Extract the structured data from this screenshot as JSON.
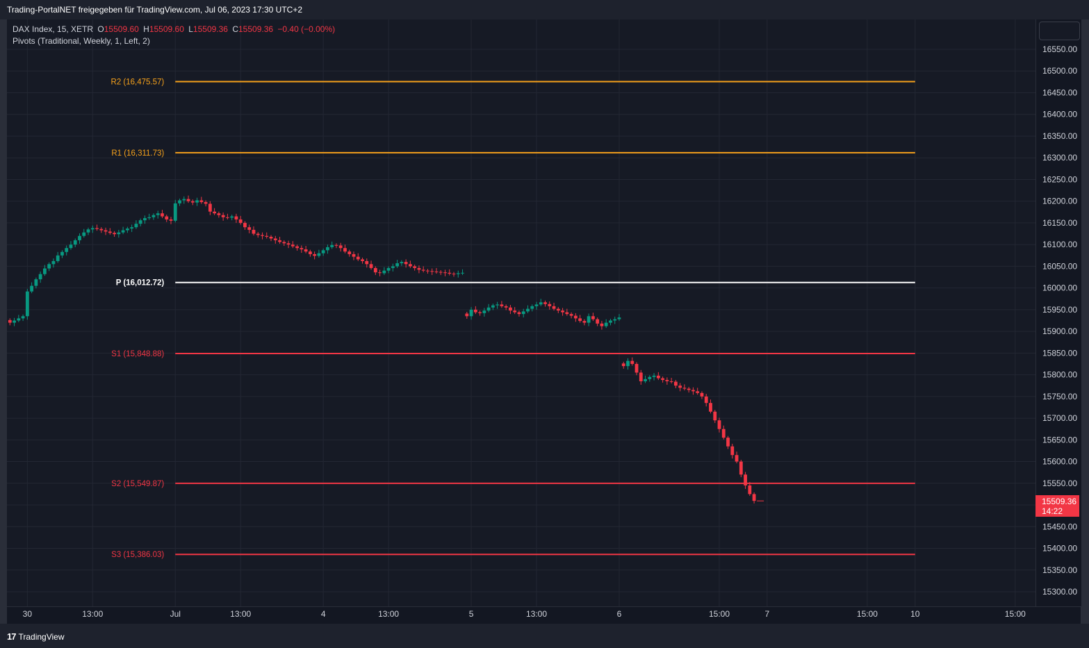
{
  "header": {
    "share_text": "Trading-PortalNET freigegeben für TradingView.com, Jul 06, 2023 17:30 UTC+2"
  },
  "legend": {
    "symbol": "DAX Index, 15, XETR",
    "o_label": "O",
    "o_value": "15509.60",
    "h_label": "H",
    "h_value": "15509.60",
    "l_label": "L",
    "l_value": "15509.36",
    "c_label": "C",
    "c_value": "15509.36",
    "change": "−0.40 (−0.00%)",
    "indicator": "Pivots (Traditional, Weekly, 1, Left, 2)"
  },
  "last_price": {
    "price": "15509.36",
    "countdown": "14:22"
  },
  "footer": {
    "brand": "TradingView",
    "logo_icon": "tradingview-logo-icon"
  },
  "colors": {
    "up": "#089981",
    "down": "#f23645",
    "pivot_p": "#ffffff",
    "resistance": "#f7a21b",
    "support": "#f23645",
    "background": "#161a25"
  },
  "chart_data": {
    "type": "candlestick",
    "symbol": "DAX Index",
    "interval": "15",
    "exchange": "XETR",
    "ylim": [
      15260,
      16600
    ],
    "y_ticks": [
      15300,
      15350,
      15400,
      15450,
      15500,
      15550,
      15600,
      15650,
      15700,
      15750,
      15800,
      15850,
      15900,
      15950,
      16000,
      16050,
      16100,
      16150,
      16200,
      16250,
      16300,
      16350,
      16400,
      16450,
      16500,
      16550
    ],
    "y_tick_labels": [
      "15300.00",
      "15350.00",
      "15400.00",
      "15450.00",
      "15500.00",
      "15550.00",
      "15600.00",
      "15650.00",
      "15700.00",
      "15750.00",
      "15800.00",
      "15850.00",
      "15900.00",
      "15950.00",
      "16000.00",
      "16050.00",
      "16100.00",
      "16150.00",
      "16200.00",
      "16250.00",
      "16300.00",
      "16350.00",
      "16400.00",
      "16450.00",
      "16500.00",
      "16550.00"
    ],
    "x_ticks": [
      {
        "label": "30",
        "bar": 4
      },
      {
        "label": "13:00",
        "bar": 19
      },
      {
        "label": "Jul",
        "bar": 38
      },
      {
        "label": "13:00",
        "bar": 53
      },
      {
        "label": "4",
        "bar": 72
      },
      {
        "label": "13:00",
        "bar": 87
      },
      {
        "label": "5",
        "bar": 106
      },
      {
        "label": "13:00",
        "bar": 121
      },
      {
        "label": "6",
        "bar": 140
      },
      {
        "label": "15:00",
        "bar": 163
      },
      {
        "label": "7",
        "bar": 174
      },
      {
        "label": "15:00",
        "bar": 197
      },
      {
        "label": "10",
        "bar": 208
      },
      {
        "label": "15:00",
        "bar": 231
      }
    ],
    "pivot_start_bar": 38,
    "pivot_end_bar": 208,
    "pivots": [
      {
        "name": "R2",
        "label": "R2 (16,475.57)",
        "value": 16475.57,
        "color": "#f7a21b"
      },
      {
        "name": "R1",
        "label": "R1 (16,311.73)",
        "value": 16311.73,
        "color": "#f7a21b"
      },
      {
        "name": "P",
        "label": "P (16,012.72)",
        "value": 16012.72,
        "color": "#ffffff"
      },
      {
        "name": "S1",
        "label": "S1 (15,848.88)",
        "value": 15848.88,
        "color": "#f23645"
      },
      {
        "name": "S2",
        "label": "S2 (15,549.87)",
        "value": 15549.87,
        "color": "#f23645"
      },
      {
        "name": "S3",
        "label": "S3 (15,386.03)",
        "value": 15386.03,
        "color": "#f23645"
      }
    ],
    "close_series": [
      15920,
      15925,
      15930,
      15935,
      15992,
      16005,
      16020,
      16032,
      16045,
      16055,
      16062,
      16075,
      16083,
      16092,
      16100,
      16110,
      16120,
      16128,
      16135,
      16138,
      16136,
      16133,
      16130,
      16127,
      16124,
      16128,
      16133,
      16137,
      16140,
      16148,
      16156,
      16161,
      16163,
      16168,
      16172,
      16165,
      16158,
      16155,
      16195,
      16202,
      16205,
      16200,
      16197,
      16202,
      16198,
      16194,
      16176,
      16172,
      16168,
      16163,
      16162,
      16165,
      16158,
      16150,
      16140,
      16134,
      16125,
      16122,
      16120,
      16118,
      16114,
      16110,
      16106,
      16103,
      16100,
      16096,
      16092,
      16089,
      16084,
      16078,
      16074,
      16080,
      16087,
      16094,
      16099,
      16098,
      16092,
      16084,
      16078,
      16072,
      16066,
      16062,
      16055,
      16046,
      16036,
      16035,
      16040,
      16046,
      16050,
      16057,
      16060,
      16055,
      16050,
      16046,
      16042,
      16040,
      16039,
      16038,
      16037,
      16036,
      16035,
      16033,
      16032,
      16034,
      16035,
      15935,
      15950,
      15944,
      15942,
      15948,
      15955,
      15960,
      15962,
      15958,
      15955,
      15948,
      15944,
      15940,
      15946,
      15952,
      15958,
      15962,
      15967,
      15963,
      15958,
      15952,
      15948,
      15944,
      15940,
      15936,
      15930,
      15924,
      15920,
      15935,
      15928,
      15918,
      15912,
      15920,
      15925,
      15928,
      15932,
      15820,
      15832,
      15825,
      15805,
      15785,
      15790,
      15795,
      15798,
      15792,
      15788,
      15785,
      15784,
      15775,
      15770,
      15768,
      15765,
      15762,
      15758,
      15750,
      15735,
      15715,
      15695,
      15675,
      15655,
      15635,
      15615,
      15600,
      15570,
      15545,
      15525,
      15509.36
    ]
  }
}
